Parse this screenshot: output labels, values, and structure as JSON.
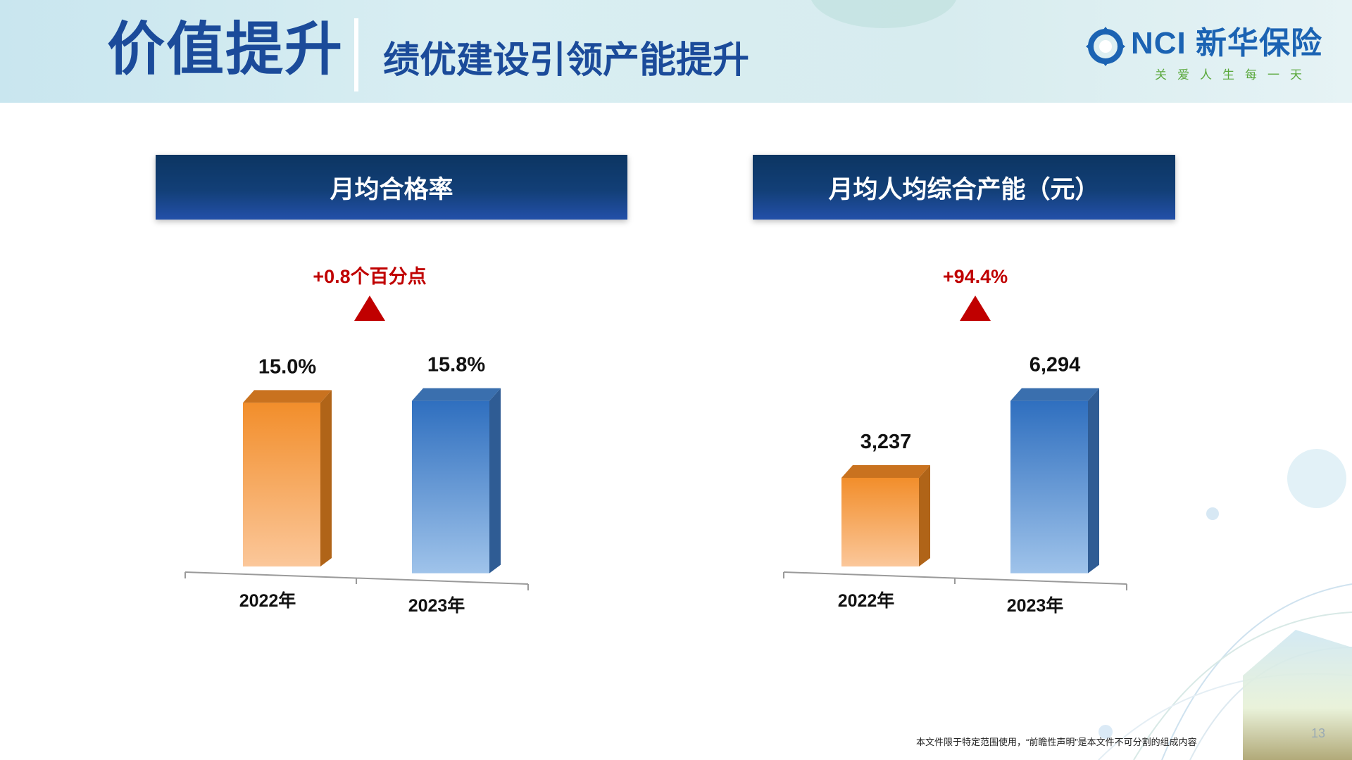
{
  "header": {
    "title": "价值提升",
    "subtitle": "绩优建设引领产能提升",
    "logo_text": "NCI 新华保险",
    "logo_slogan": "关爱人生每一天"
  },
  "colors": {
    "header_text": "#1b4b9a",
    "panel_title_bg": "#123f77",
    "bar_2022": "#f28e2b",
    "bar_2023": "#3a7dc9",
    "increase_marker": "#c00000"
  },
  "panels": [
    {
      "title": "月均合格率",
      "change_label": "+0.8个百分点"
    },
    {
      "title": "月均人均综合产能（元）",
      "change_label": "+94.4%"
    }
  ],
  "chart_data": [
    {
      "type": "bar",
      "title": "月均合格率",
      "categories": [
        "2022年",
        "2023年"
      ],
      "values": [
        15.0,
        15.8
      ],
      "value_labels": [
        "15.0%",
        "15.8%"
      ],
      "unit": "%",
      "change": "+0.8个百分点",
      "ylim": [
        0,
        20
      ]
    },
    {
      "type": "bar",
      "title": "月均人均综合产能（元）",
      "categories": [
        "2022年",
        "2023年"
      ],
      "values": [
        3237,
        6294
      ],
      "value_labels": [
        "3,237",
        "6,294"
      ],
      "unit": "元",
      "change": "+94.4%",
      "ylim": [
        0,
        7000
      ]
    }
  ],
  "footer": {
    "note": "本文件限于特定范围使用，“前瞻性声明”是本文件不可分割的组成内容",
    "page_number": "13"
  }
}
